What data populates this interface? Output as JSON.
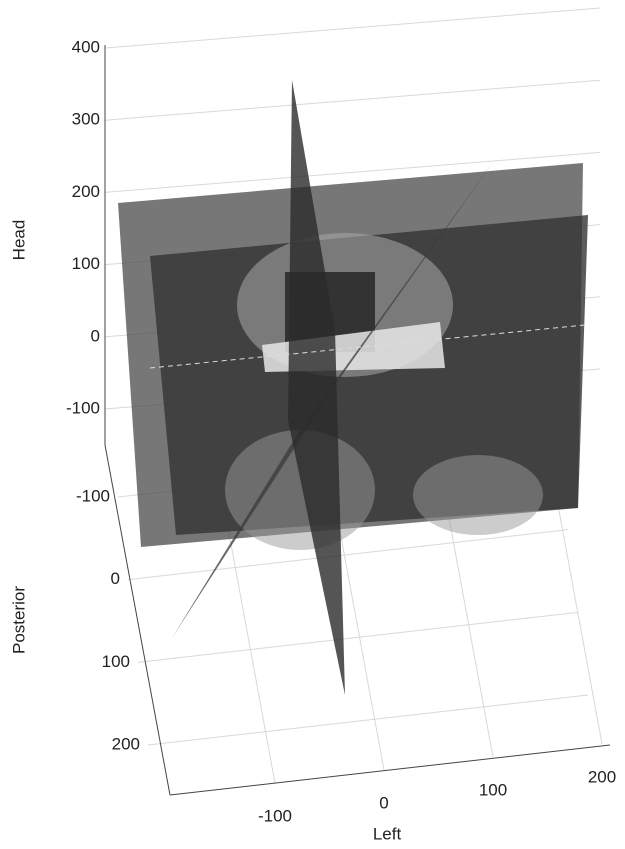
{
  "chart_data": {
    "type": "slice3d",
    "xlabel": "Left",
    "ylabel": "Posterior",
    "zlabel": "Head",
    "xticks": [
      -100,
      0,
      100,
      200
    ],
    "yticks": [
      -100,
      0,
      100,
      200
    ],
    "zticks": [
      400,
      300,
      200,
      100,
      0,
      -100
    ],
    "grid": true
  }
}
